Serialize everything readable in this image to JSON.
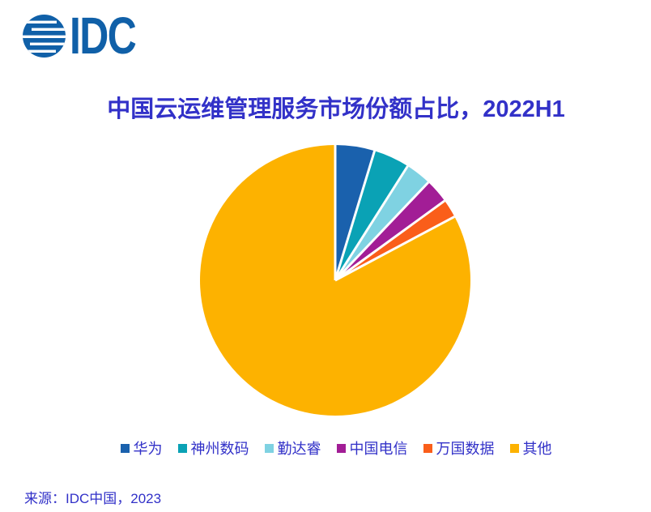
{
  "page": {
    "background": "#ffffff",
    "text_color": "#3231c8"
  },
  "logo": {
    "text": "IDC",
    "icon": "globe-icon",
    "color": "#1060a8"
  },
  "chart": {
    "title": "中国云运维管理服务市场份额占比，2022H1"
  },
  "source_note": "来源：IDC中国，2023",
  "chart_data": {
    "type": "pie",
    "title": "中国云运维管理服务市场份额占比，2022H1",
    "units": "percent",
    "start_angle_deg": 0,
    "direction": "clockwise",
    "legend_position": "bottom",
    "separator_color": "#ffffff",
    "slices": [
      {
        "label": "华为",
        "value": 4.7,
        "color": "#1a61ad"
      },
      {
        "label": "神州数码",
        "value": 4.3,
        "color": "#0aa2b5"
      },
      {
        "label": "勤达睿",
        "value": 3.1,
        "color": "#7fd2e2"
      },
      {
        "label": "中国电信",
        "value": 2.9,
        "color": "#a21d96"
      },
      {
        "label": "万国数据",
        "value": 2.2,
        "color": "#fa5e1a"
      },
      {
        "label": "其他",
        "value": 82.8,
        "color": "#fdb200"
      }
    ]
  }
}
